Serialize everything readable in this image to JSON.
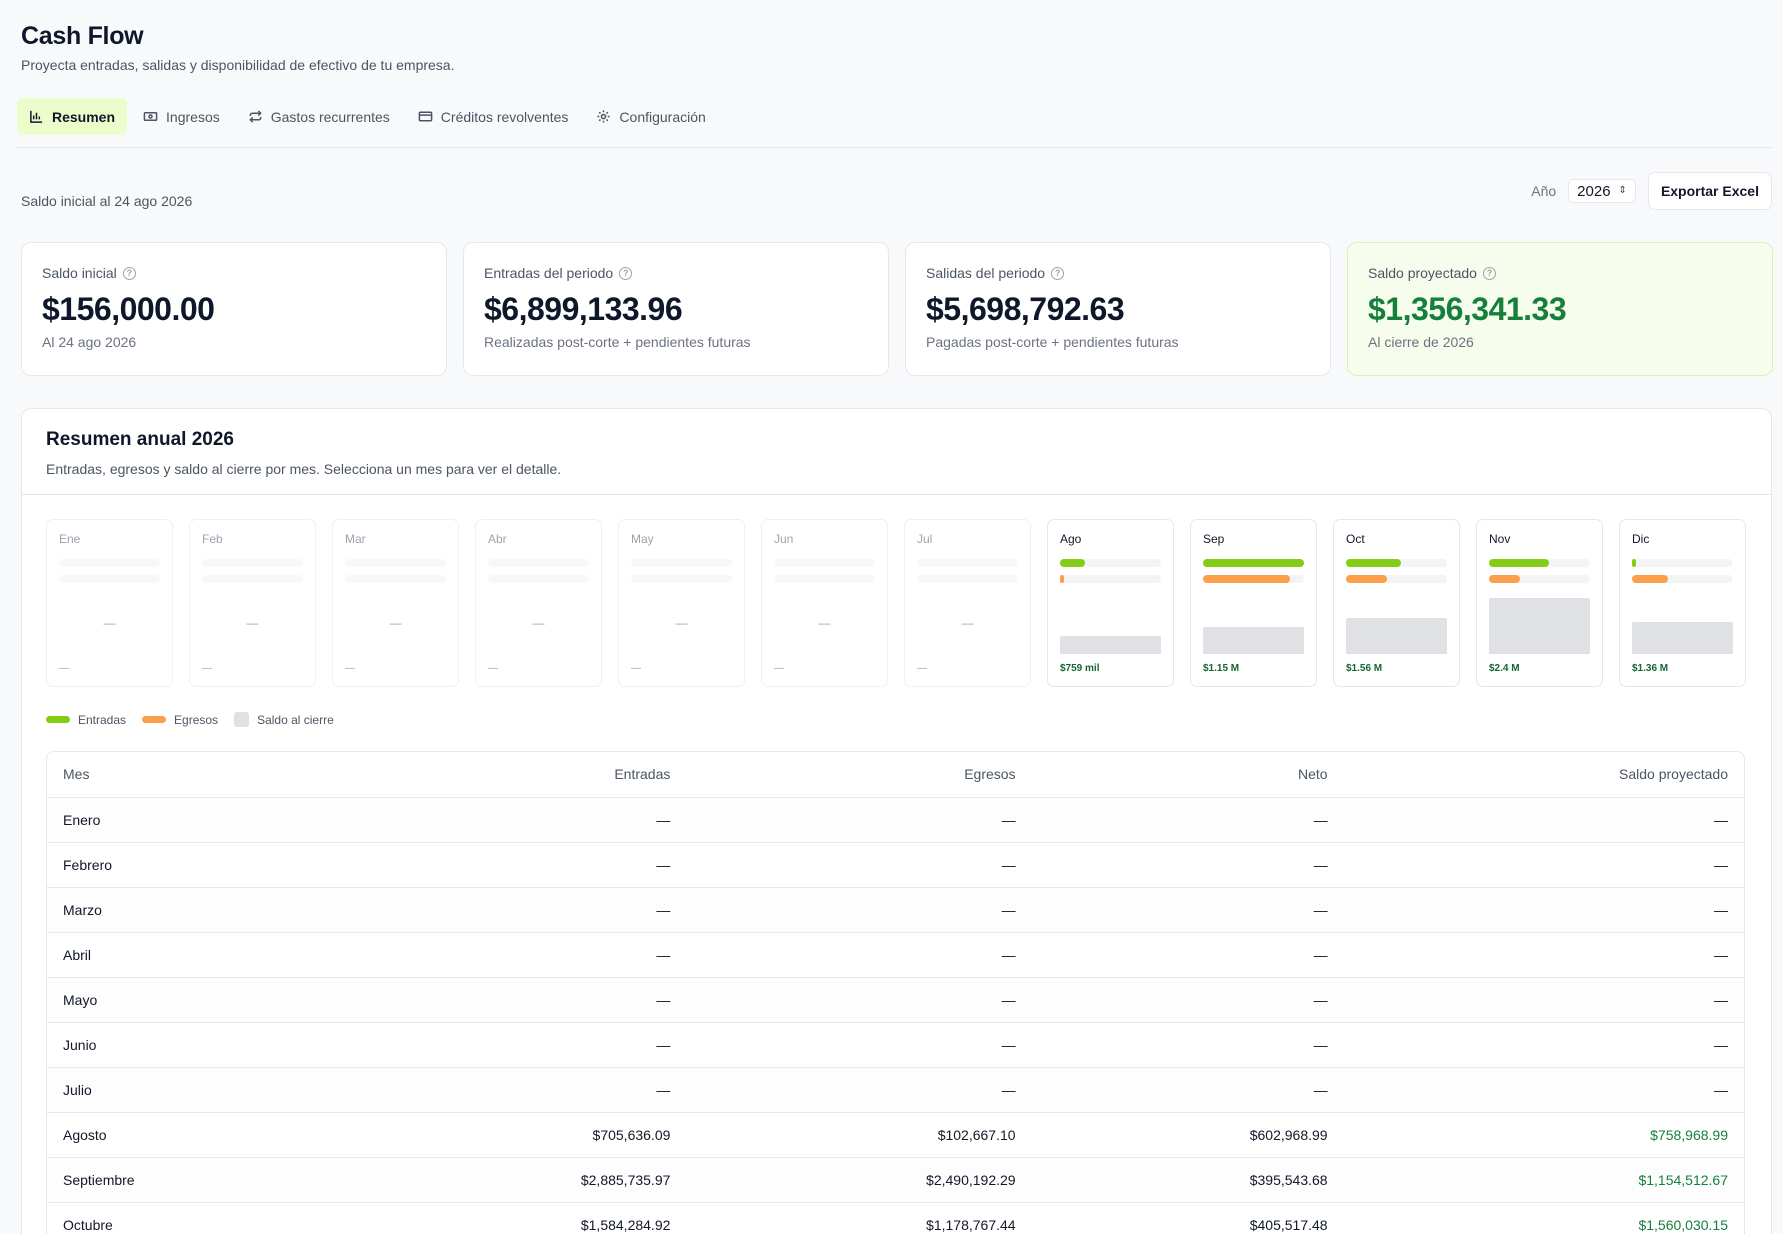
{
  "header": {
    "title": "Cash Flow",
    "subtitle": "Proyecta entradas, salidas y disponibilidad de efectivo de tu empresa."
  },
  "tabs": [
    {
      "label": "Resumen",
      "icon": "bar-chart-icon",
      "active": true
    },
    {
      "label": "Ingresos",
      "icon": "banknote-icon",
      "active": false
    },
    {
      "label": "Gastos recurrentes",
      "icon": "repeat-icon",
      "active": false
    },
    {
      "label": "Créditos revolventes",
      "icon": "credit-card-icon",
      "active": false
    },
    {
      "label": "Configuración",
      "icon": "gear-icon",
      "active": false
    }
  ],
  "toolbar": {
    "as_of": "Saldo inicial al 24 ago 2026",
    "year_label": "Año",
    "year_value": "2026",
    "export_label": "Exportar Excel"
  },
  "cards": [
    {
      "label": "Saldo inicial",
      "value": "$156,000.00",
      "note": "Al 24 ago 2026"
    },
    {
      "label": "Entradas del periodo",
      "value": "$6,899,133.96",
      "note": "Realizadas post-corte + pendientes futuras"
    },
    {
      "label": "Salidas del periodo",
      "value": "$5,698,792.63",
      "note": "Pagadas post-corte + pendientes futuras"
    },
    {
      "label": "Saldo proyectado",
      "value": "$1,356,341.33",
      "note": "Al cierre de 2026"
    }
  ],
  "summary": {
    "title": "Resumen anual 2026",
    "subtitle": "Entradas, egresos y saldo al cierre por mes. Selecciona un mes para ver el detalle.",
    "empty_mark": "—",
    "months": [
      {
        "short": "Ene",
        "in_frac": 0,
        "out_frac": 0,
        "bal_frac": 0,
        "value": "—"
      },
      {
        "short": "Feb",
        "in_frac": 0,
        "out_frac": 0,
        "bal_frac": 0,
        "value": "—"
      },
      {
        "short": "Mar",
        "in_frac": 0,
        "out_frac": 0,
        "bal_frac": 0,
        "value": "—"
      },
      {
        "short": "Abr",
        "in_frac": 0,
        "out_frac": 0,
        "bal_frac": 0,
        "value": "—"
      },
      {
        "short": "May",
        "in_frac": 0,
        "out_frac": 0,
        "bal_frac": 0,
        "value": "—"
      },
      {
        "short": "Jun",
        "in_frac": 0,
        "out_frac": 0,
        "bal_frac": 0,
        "value": "—"
      },
      {
        "short": "Jul",
        "in_frac": 0,
        "out_frac": 0,
        "bal_frac": 0,
        "value": "—"
      },
      {
        "short": "Ago",
        "in_frac": 0.245,
        "out_frac": 0.035,
        "bal_frac": 0.316,
        "value": "$759 mil"
      },
      {
        "short": "Sep",
        "in_frac": 1.0,
        "out_frac": 0.863,
        "bal_frac": 0.481,
        "value": "$1.15 M"
      },
      {
        "short": "Oct",
        "in_frac": 0.549,
        "out_frac": 0.408,
        "bal_frac": 0.65,
        "value": "$1.56 M"
      },
      {
        "short": "Nov",
        "in_frac": 0.59,
        "out_frac": 0.31,
        "bal_frac": 1.0,
        "value": "$2.4 M"
      },
      {
        "short": "Dic",
        "in_frac": 0.04,
        "out_frac": 0.36,
        "bal_frac": 0.567,
        "value": "$1.36 M"
      }
    ],
    "legend": {
      "in_label": "Entradas",
      "out_label": "Egresos",
      "bal_label": "Saldo al cierre"
    }
  },
  "colors": {
    "in": "#84cc16",
    "out": "#fb9f4b",
    "balance": "#e0e1e4",
    "positive": "#15803d"
  },
  "table": {
    "columns": [
      "Mes",
      "Entradas",
      "Egresos",
      "Neto",
      "Saldo proyectado"
    ],
    "rows": [
      [
        "Enero",
        "—",
        "—",
        "—",
        "—"
      ],
      [
        "Febrero",
        "—",
        "—",
        "—",
        "—"
      ],
      [
        "Marzo",
        "—",
        "—",
        "—",
        "—"
      ],
      [
        "Abril",
        "—",
        "—",
        "—",
        "—"
      ],
      [
        "Mayo",
        "—",
        "—",
        "—",
        "—"
      ],
      [
        "Junio",
        "—",
        "—",
        "—",
        "—"
      ],
      [
        "Julio",
        "—",
        "—",
        "—",
        "—"
      ],
      [
        "Agosto",
        "$705,636.09",
        "$102,667.10",
        "$602,968.99",
        "$758,968.99"
      ],
      [
        "Septiembre",
        "$2,885,735.97",
        "$2,490,192.29",
        "$395,543.68",
        "$1,154,512.67"
      ],
      [
        "Octubre",
        "$1,584,284.92",
        "$1,178,767.44",
        "$405,517.48",
        "$1,560,030.15"
      ]
    ]
  }
}
